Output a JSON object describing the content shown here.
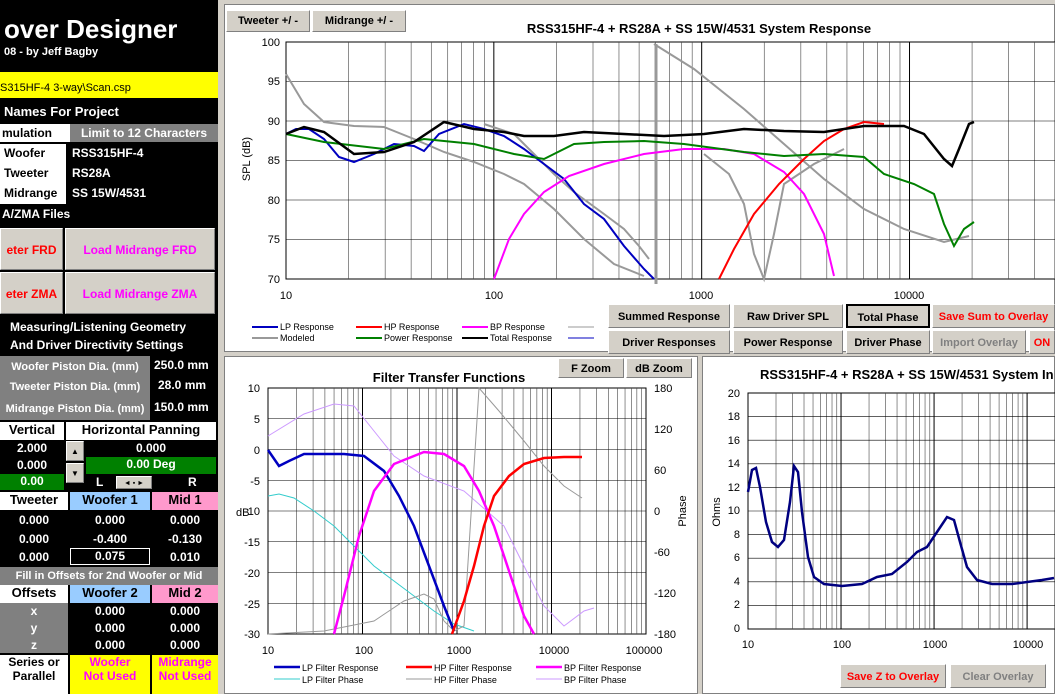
{
  "app": {
    "title": "over Designer",
    "subtitle": "08 - by Jeff Bagby",
    "file": "S315HF-4 3-way\\Scan.csp"
  },
  "names": {
    "header": "Names For Project",
    "sim_label": "mulation",
    "limit": "Limit to 12 Characters",
    "rows": [
      {
        "label": "Woofer",
        "value": "RSS315HF-4"
      },
      {
        "label": "Tweeter",
        "value": "RS28A"
      },
      {
        "label": "Midrange",
        "value": "SS 15W/4531"
      }
    ]
  },
  "files": {
    "header": "A/ZMA Files",
    "tw_frd": "eter FRD",
    "mid_frd": "Load Midrange FRD",
    "tw_zma": "eter ZMA",
    "mid_zma": "Load Midrange ZMA"
  },
  "geometry": {
    "header1": "Measuring/Listening Geometry",
    "header2": "And Driver Directivity Settings",
    "rows": [
      {
        "label": "Woofer Piston Dia. (mm)",
        "value": "250.0 mm"
      },
      {
        "label": "Tweeter Piston Dia. (mm)",
        "value": "28.0 mm"
      },
      {
        "label": "Midrange Piston Dia. (mm)",
        "value": "150.0 mm"
      }
    ]
  },
  "panning": {
    "vertical": "Vertical",
    "horizontal": "Horizontal Panning",
    "v1": "2.000",
    "v2": "0.000",
    "v3": "0.00",
    "h1": "0.000",
    "deg": "0.00 Deg",
    "L": "L",
    "R": "R"
  },
  "offsets": {
    "cols": [
      "Tweeter",
      "Woofer 1",
      "Mid 1"
    ],
    "rows": [
      [
        "0.000",
        "0.000",
        "0.000"
      ],
      [
        "0.000",
        "-0.400",
        "-0.130"
      ],
      [
        "0.000",
        "0.075",
        "0.010"
      ]
    ],
    "fill": "Fill in Offsets for 2nd Woofer or Mid",
    "header": "Offsets",
    "cols2": [
      "Woofer 2",
      "Mid 2"
    ],
    "rows2": [
      {
        "label": "x",
        "a": "0.000",
        "b": "0.000"
      },
      {
        "label": "y",
        "a": "0.000",
        "b": "0.000"
      },
      {
        "label": "z",
        "a": "0.000",
        "b": "0.000"
      }
    ],
    "series": "Series or",
    "parallel": "Parallel",
    "w_used1": "Woofer",
    "w_used2": "Not Used",
    "m_used1": "Midrange",
    "m_used2": "Not Used"
  },
  "tabs": {
    "tweeter": "Tweeter +/ -",
    "midrange": "Midrange   +/ -"
  },
  "top_chart": {
    "title": "RSS315HF-4 + RS28A + SS 15W/4531  System Response",
    "ylabel": "SPL (dB)",
    "yticks": [
      "100",
      "95",
      "90",
      "85",
      "80",
      "75",
      "70"
    ],
    "xticks": [
      "10",
      "100",
      "1000",
      "10000"
    ],
    "legend": [
      {
        "name": "LP Response",
        "color": "#0000c0"
      },
      {
        "name": "HP Response",
        "color": "#ff0000"
      },
      {
        "name": "BP Response",
        "color": "#ff00ff"
      },
      {
        "name": "Modeled",
        "color": "#999999"
      },
      {
        "name": "Power Response",
        "color": "#008000"
      },
      {
        "name": "Total Response",
        "color": "#000000"
      }
    ]
  },
  "buttons": {
    "summed": "Summed Response",
    "raw": "Raw Driver SPL",
    "total": "Total Phase",
    "save_sum": "Save Sum to Overlay",
    "driver_resp": "Driver Responses",
    "power_resp": "Power Response",
    "driver_phase": "Driver Phase",
    "import": "Import Overlay",
    "on": "ON",
    "fzoom": "F Zoom",
    "dbzoom": "dB Zoom",
    "save_z": "Save Z to Overlay",
    "clear": "Clear Overlay"
  },
  "filter_chart": {
    "title": "Filter Transfer Functions",
    "ylabel": "dB",
    "y2label": "Phase",
    "yticks": [
      "10",
      "5",
      "0",
      "-5",
      "-10",
      "-15",
      "-20",
      "-25",
      "-30"
    ],
    "y2ticks": [
      "180",
      "120",
      "60",
      "0",
      "-60",
      "-120",
      "-180"
    ],
    "xticks": [
      "10",
      "100",
      "1000",
      "10000",
      "100000"
    ],
    "legend": [
      {
        "name": "LP Filter Response",
        "color": "#0000c0"
      },
      {
        "name": "HP Filter Response",
        "color": "#ff0000"
      },
      {
        "name": "BP Filter Response",
        "color": "#ff00ff"
      },
      {
        "name": "LP Filter Phase",
        "color": "#33cccc"
      },
      {
        "name": "HP Filter Phase",
        "color": "#999999"
      },
      {
        "name": "BP Filter Phase",
        "color": "#cc99ff"
      }
    ]
  },
  "imp_chart": {
    "title": "RSS315HF-4 + RS28A + SS 15W/4531  System In",
    "ylabel": "Ohms",
    "yticks": [
      "20",
      "18",
      "16",
      "14",
      "12",
      "10",
      "8",
      "6",
      "4",
      "2",
      "0"
    ],
    "xticks": [
      "10",
      "100",
      "1000",
      "10000"
    ]
  }
}
